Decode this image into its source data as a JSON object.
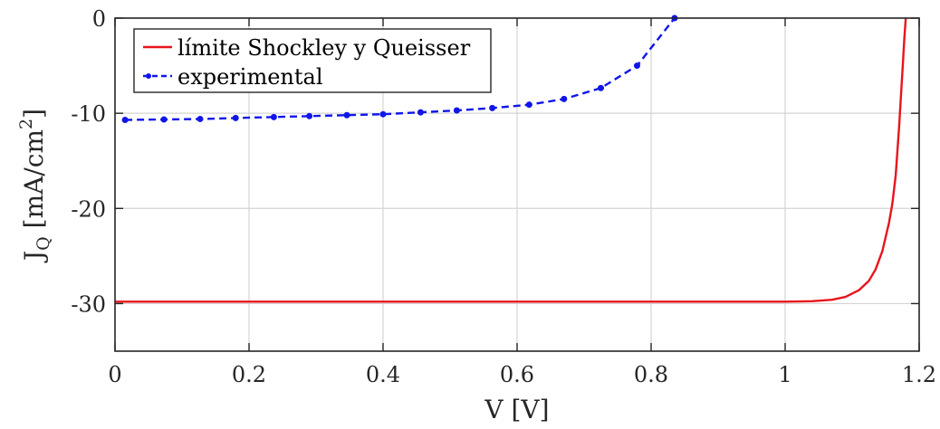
{
  "chart_data": {
    "type": "line",
    "title": "",
    "xlabel": "V [V]",
    "ylabel": {
      "main": "J",
      "sub": "Q",
      "unit": " [mA/cm",
      "sup": "2",
      "close": "]"
    },
    "xlim": [
      0,
      1.2
    ],
    "ylim": [
      -35,
      0
    ],
    "xticks": [
      0,
      0.2,
      0.4,
      0.6,
      0.8,
      1,
      1.2
    ],
    "xtick_labels": [
      "0",
      "0.2",
      "0.4",
      "0.6",
      "0.8",
      "1",
      "1.2"
    ],
    "yticks": [
      0,
      -10,
      -20,
      -30
    ],
    "ytick_labels": [
      "0",
      "-10",
      "-20",
      "-30"
    ],
    "grid": true,
    "legend_position": "top-left",
    "series": [
      {
        "name": "límite Shockley y Queisser",
        "color": "#e8141c",
        "style": "solid",
        "markers": false,
        "points": [
          [
            0,
            -29.8
          ],
          [
            0.2,
            -29.8
          ],
          [
            0.4,
            -29.8
          ],
          [
            0.6,
            -29.8
          ],
          [
            0.8,
            -29.8
          ],
          [
            0.95,
            -29.8
          ],
          [
            1.0,
            -29.8
          ],
          [
            1.04,
            -29.75
          ],
          [
            1.07,
            -29.6
          ],
          [
            1.09,
            -29.3
          ],
          [
            1.11,
            -28.6
          ],
          [
            1.125,
            -27.6
          ],
          [
            1.135,
            -26.4
          ],
          [
            1.145,
            -24.5
          ],
          [
            1.155,
            -21.5
          ],
          [
            1.16,
            -19.5
          ],
          [
            1.165,
            -16.5
          ],
          [
            1.17,
            -11.5
          ],
          [
            1.173,
            -8.0
          ],
          [
            1.176,
            -4.5
          ],
          [
            1.178,
            -2.0
          ],
          [
            1.18,
            0
          ]
        ]
      },
      {
        "name": "experimental",
        "color": "#1016e8",
        "style": "dashed",
        "markers": true,
        "points": [
          [
            0.015,
            -10.7
          ],
          [
            0.073,
            -10.65
          ],
          [
            0.127,
            -10.6
          ],
          [
            0.18,
            -10.5
          ],
          [
            0.237,
            -10.4
          ],
          [
            0.29,
            -10.3
          ],
          [
            0.346,
            -10.2
          ],
          [
            0.4,
            -10.1
          ],
          [
            0.456,
            -9.9
          ],
          [
            0.51,
            -9.7
          ],
          [
            0.563,
            -9.45
          ],
          [
            0.618,
            -9.1
          ],
          [
            0.67,
            -8.5
          ],
          [
            0.725,
            -7.35
          ],
          [
            0.779,
            -5.0
          ],
          [
            0.835,
            0
          ]
        ]
      }
    ]
  }
}
